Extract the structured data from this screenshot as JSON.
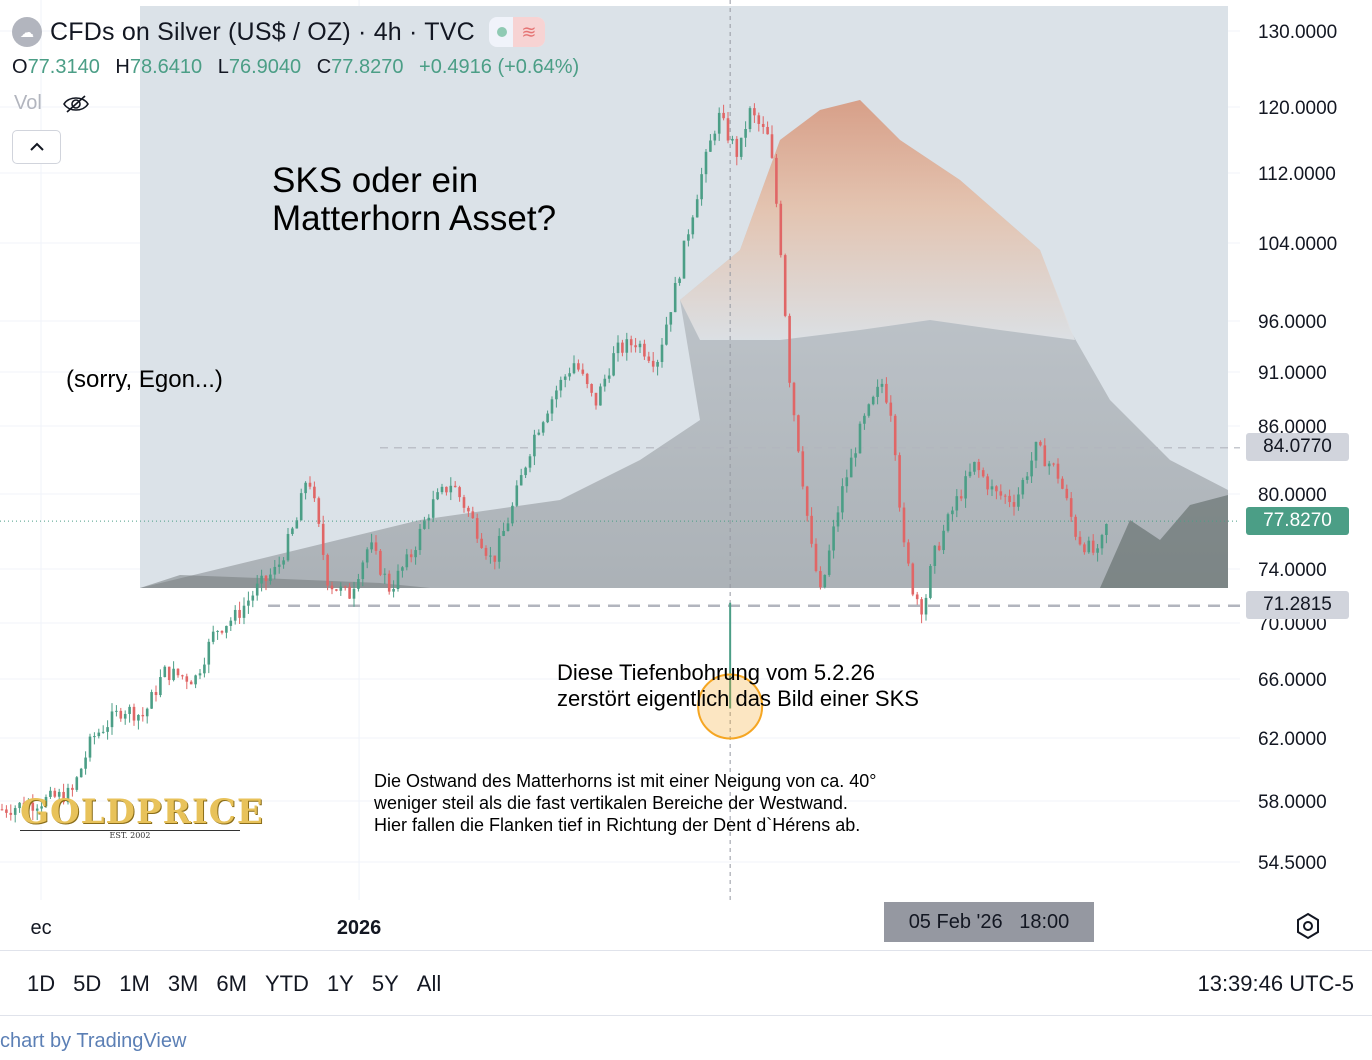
{
  "header": {
    "title": "CFDs on Silver (US$ / OZ) · 4h · TVC",
    "ohlc": [
      {
        "k": "O",
        "v": "77.3140"
      },
      {
        "k": "H",
        "v": "78.6410"
      },
      {
        "k": "L",
        "v": "76.9040"
      },
      {
        "k": "C",
        "v": "77.8270"
      }
    ],
    "change": "+0.4916 (+0.64%)",
    "vol_label": "Vol"
  },
  "annotations": {
    "title_line1": "SKS oder ein",
    "title_line2": "Matterhorn Asset?",
    "sorry": "(sorry, Egon...)",
    "dip_line1": "Diese Tiefenbohrung vom 5.2.26",
    "dip_line2": "zerstört eigentlich das Bild einer SKS",
    "east_line1": "Die Ostwand des Matterhorns ist mit einer Neigung von ca. 40°",
    "east_line2": "weniger steil als die fast vertikalen Bereiche der Westwand.",
    "east_line3": "Hier fallen die Flanken tief in Richtung der Dent d`Hérens ab."
  },
  "logo": {
    "word": "GOLDPRICE",
    "est": "EST. 2002"
  },
  "price_tags": {
    "level_high": "84.0770",
    "last": "77.8270",
    "level_low": "71.2815"
  },
  "crosshair": {
    "time": "05 Feb '26   18:00"
  },
  "ranges": [
    "1D",
    "5D",
    "1M",
    "3M",
    "6M",
    "YTD",
    "1Y",
    "5Y",
    "All"
  ],
  "clock": "13:39:46 UTC-5",
  "attribution": "chart by TradingView",
  "colors": {
    "up": "#4b9e86",
    "down": "#e06666",
    "accent": "#4b9e86",
    "circle": "#f5a623"
  },
  "chart_data": {
    "type": "candlestick",
    "title": "CFDs on Silver (US$ / OZ) · 4h · TVC",
    "y_ticks": [
      130,
      120,
      112,
      104,
      96,
      91,
      86,
      80,
      74,
      70,
      66,
      62,
      58,
      54.5
    ],
    "x_ticks": [
      {
        "label": "ec",
        "date": "2025-12"
      },
      {
        "label": "2026",
        "date": "2026-01"
      }
    ],
    "horizontal_lines": [
      84.077,
      71.2815
    ],
    "last_price": 77.827,
    "dip_marker": {
      "date": "2026-02-05",
      "time": "18:00",
      "low": 64.0
    },
    "price_path": [
      [
        "2025-11-27",
        57.5
      ],
      [
        "2025-12-01",
        58.0
      ],
      [
        "2025-12-04",
        58.5
      ],
      [
        "2025-12-06",
        62.0
      ],
      [
        "2025-12-09",
        64.0
      ],
      [
        "2025-12-11",
        63.5
      ],
      [
        "2025-12-13",
        66.5
      ],
      [
        "2025-12-16",
        66.0
      ],
      [
        "2025-12-18",
        69.5
      ],
      [
        "2025-12-20",
        70.5
      ],
      [
        "2025-12-22",
        72.5
      ],
      [
        "2025-12-24",
        74.0
      ],
      [
        "2025-12-26",
        78.0
      ],
      [
        "2025-12-27",
        82.0
      ],
      [
        "2025-12-29",
        73.0
      ],
      [
        "2025-12-31",
        72.0
      ],
      [
        "2026-01-02",
        76.0
      ],
      [
        "2026-01-04",
        72.5
      ],
      [
        "2026-01-06",
        75.0
      ],
      [
        "2026-01-08",
        79.0
      ],
      [
        "2026-01-10",
        81.0
      ],
      [
        "2026-01-12",
        78.0
      ],
      [
        "2026-01-14",
        74.5
      ],
      [
        "2026-01-16",
        79.0
      ],
      [
        "2026-01-18",
        85.0
      ],
      [
        "2026-01-20",
        89.0
      ],
      [
        "2026-01-22",
        92.0
      ],
      [
        "2026-01-24",
        88.0
      ],
      [
        "2026-01-26",
        93.0
      ],
      [
        "2026-01-28",
        94.0
      ],
      [
        "2026-01-30",
        92.0
      ],
      [
        "2026-02-01",
        100.0
      ],
      [
        "2026-02-03",
        110.0
      ],
      [
        "2026-02-05",
        119.0
      ],
      [
        "2026-02-07",
        114.0
      ],
      [
        "2026-02-08",
        119.5
      ],
      [
        "2026-02-10",
        116.0
      ],
      [
        "2026-02-11",
        105.0
      ],
      [
        "2026-02-12",
        90.0
      ],
      [
        "2026-02-14",
        76.0
      ],
      [
        "2026-02-15",
        72.0
      ],
      [
        "2026-02-17",
        80.0
      ],
      [
        "2026-02-19",
        86.0
      ],
      [
        "2026-02-21",
        90.0
      ],
      [
        "2026-02-22",
        87.0
      ],
      [
        "2026-02-23",
        76.0
      ],
      [
        "2026-02-24",
        72.5
      ],
      [
        "2026-02-25",
        71.0
      ],
      [
        "2026-02-26",
        75.0
      ],
      [
        "2026-02-28",
        79.0
      ],
      [
        "2026-03-02",
        82.5
      ],
      [
        "2026-03-04",
        80.0
      ],
      [
        "2026-03-06",
        79.5
      ],
      [
        "2026-03-08",
        84.0
      ],
      [
        "2026-03-10",
        82.0
      ],
      [
        "2026-03-12",
        76.5
      ],
      [
        "2026-03-14",
        75.0
      ],
      [
        "2026-03-15",
        77.8
      ]
    ]
  }
}
